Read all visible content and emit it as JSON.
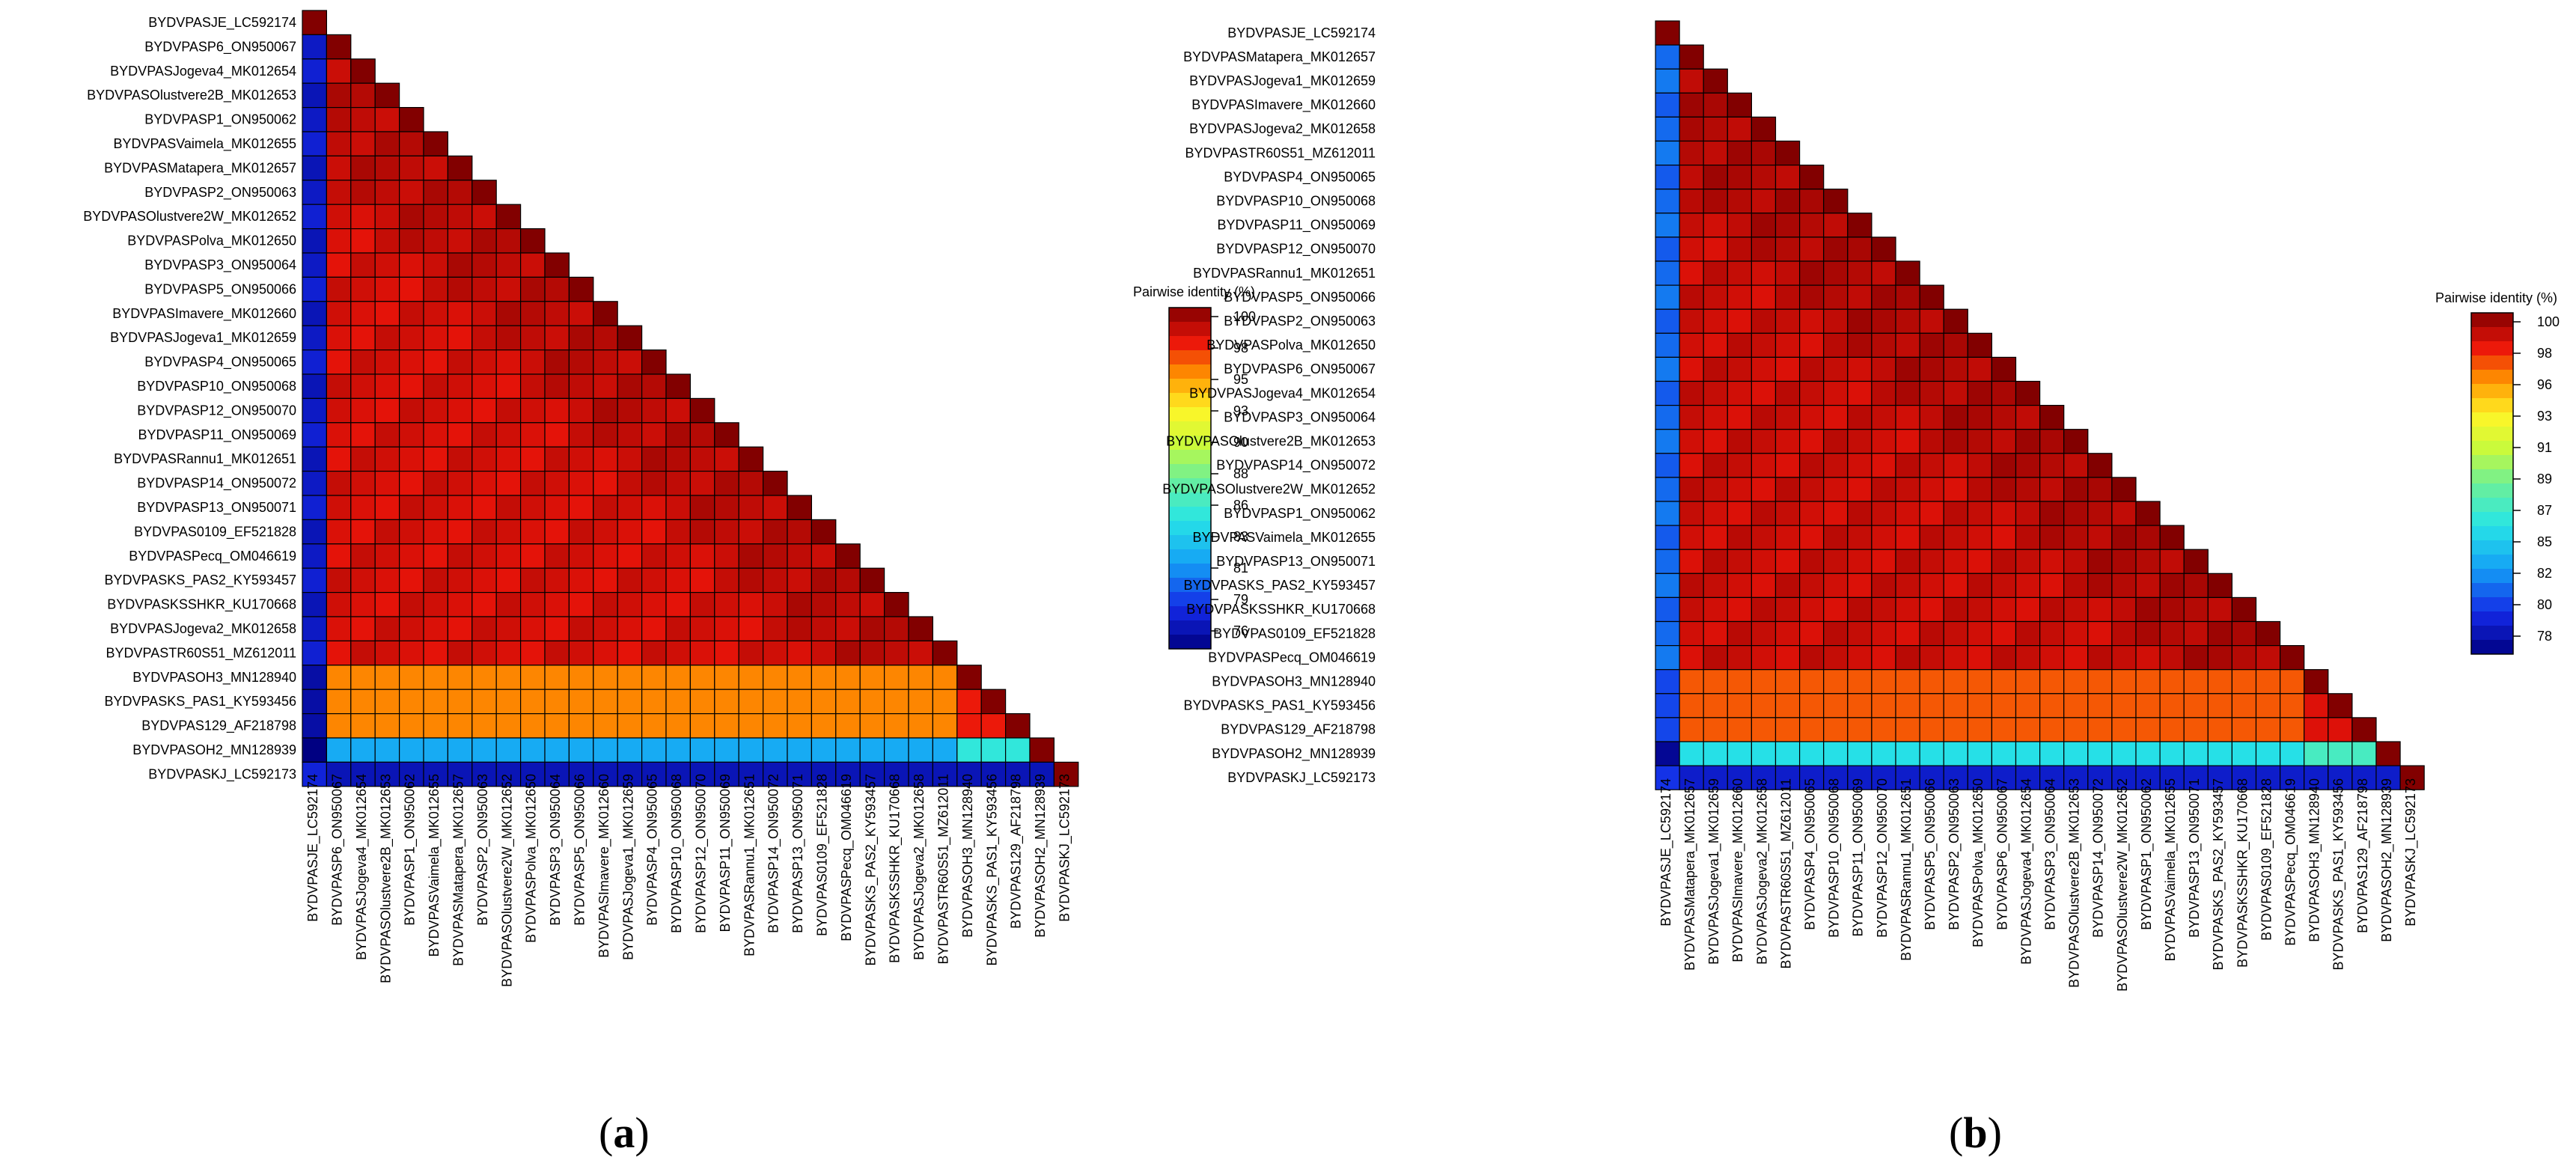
{
  "chart_data": [
    {
      "type": "heatmap",
      "panel": "(a)",
      "panel_letter": "a",
      "legend_title": "Pairwise identity (%)",
      "legend_ticks": [
        "100",
        "98",
        "95",
        "93",
        "90",
        "88",
        "86",
        "83",
        "81",
        "79",
        "76"
      ],
      "colorscale_range": [
        76,
        100
      ],
      "labels": [
        "BYDVPASJE_LC592174",
        "BYDVPASP6_ON950067",
        "BYDVPASJogeva4_MK012654",
        "BYDVPASOlustvere2B_MK012653",
        "BYDVPASP1_ON950062",
        "BYDVPASVaimela_MK012655",
        "BYDVPASMatapera_MK012657",
        "BYDVPASP2_ON950063",
        "BYDVPASOlustvere2W_MK012652",
        "BYDVPASPolva_MK012650",
        "BYDVPASP3_ON950064",
        "BYDVPASP5_ON950066",
        "BYDVPASImavere_MK012660",
        "BYDVPASJogeva1_MK012659",
        "BYDVPASP4_ON950065",
        "BYDVPASP10_ON950068",
        "BYDVPASP12_ON950070",
        "BYDVPASP11_ON950069",
        "BYDVPASRannu1_MK012651",
        "BYDVPASP14_ON950072",
        "BYDVPASP13_ON950071",
        "BYDVPAS0109_EF521828",
        "BYDVPASPecq_OM046619",
        "BYDVPASKS_PAS2_KY593457",
        "BYDVPASKSSHKR_KU170668",
        "BYDVPASJogeva2_MK012658",
        "BYDVPASTR60S51_MZ612011",
        "BYDVPASOH3_MN128940",
        "BYDVPASKS_PAS1_KY593456",
        "BYDVPAS129_AF218798",
        "BYDVPASOH2_MN128939",
        "BYDVPASKJ_LC592173"
      ],
      "group_identity": {
        "core_vs_core": 98.5,
        "core_vs_je": 77.5,
        "outgroup_vs_core": 95.5,
        "outgroup_vs_outgroup": 97.5,
        "oh2_vs_core": 82.5,
        "oh2_vs_outgroup": 85.5,
        "kj_vs_core": 77.5,
        "oh2_vs_je": 76.0,
        "kj_vs_je": 78.5,
        "diagonal": 100
      }
    },
    {
      "type": "heatmap",
      "panel": "(b)",
      "panel_letter": "b",
      "legend_title": "Pairwise identity (%)",
      "legend_ticks": [
        "100",
        "98",
        "96",
        "93",
        "91",
        "89",
        "87",
        "85",
        "82",
        "80",
        "78"
      ],
      "colorscale_range": [
        77,
        100
      ],
      "labels": [
        "BYDVPASJE_LC592174",
        "BYDVPASMatapera_MK012657",
        "BYDVPASJogeva1_MK012659",
        "BYDVPASImavere_MK012660",
        "BYDVPASJogeva2_MK012658",
        "BYDVPASTR60S51_MZ612011",
        "BYDVPASP4_ON950065",
        "BYDVPASP10_ON950068",
        "BYDVPASP11_ON950069",
        "BYDVPASP12_ON950070",
        "BYDVPASRannu1_MK012651",
        "BYDVPASP5_ON950066",
        "BYDVPASP2_ON950063",
        "BYDVPASPolva_MK012650",
        "BYDVPASP6_ON950067",
        "BYDVPASJogeva4_MK012654",
        "BYDVPASP3_ON950064",
        "BYDVPASOlustvere2B_MK012653",
        "BYDVPASP14_ON950072",
        "BYDVPASOlustvere2W_MK012652",
        "BYDVPASP1_ON950062",
        "BYDVPASVaimela_MK012655",
        "BYDVPASP13_ON950071",
        "BYDVPASKS_PAS2_KY593457",
        "BYDVPASKSSHKR_KU170668",
        "BYDVPAS0109_EF521828",
        "BYDVPASPecq_OM046619",
        "BYDVPASOH3_MN128940",
        "BYDVPASKS_PAS1_KY593456",
        "BYDVPAS129_AF218798",
        "BYDVPASOH2_MN128939",
        "BYDVPASKJ_LC592173"
      ],
      "group_identity": {
        "core_vs_core": 98.8,
        "core_vs_je": 81.0,
        "outgroup_vs_core": 96.5,
        "outgroup_vs_outgroup": 98.0,
        "oh2_vs_core": 85.5,
        "oh2_vs_outgroup": 87.0,
        "kj_vs_core": 79.0,
        "oh2_vs_je": 77.5,
        "kj_vs_je": 80.0,
        "diagonal": 100
      }
    }
  ],
  "colors": {
    "grid_line": "#000000",
    "border": "#000000"
  }
}
